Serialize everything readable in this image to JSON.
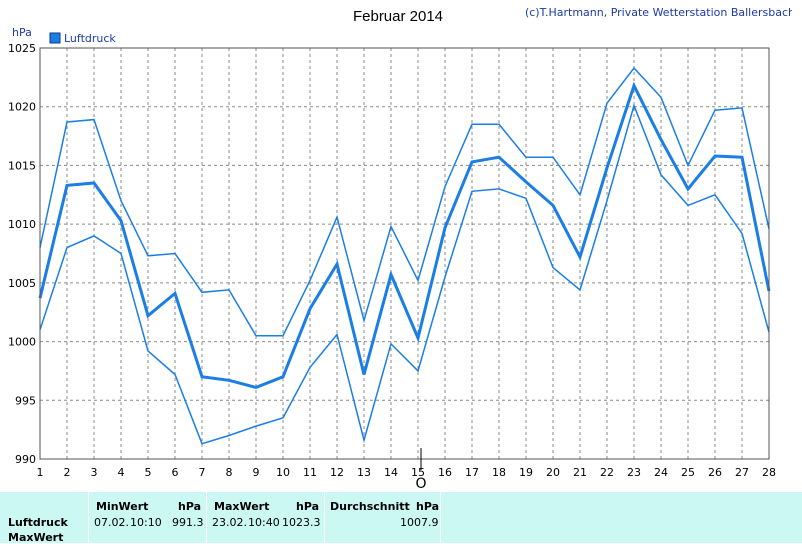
{
  "header": {
    "title": "Februar 2014",
    "copyright": "(c)T.Hartmann, Private Wetterstation Ballersbach",
    "unit_label": "hPa",
    "cursor_marker": "O"
  },
  "colors": {
    "series": "#1a7ee6",
    "legend_box": "#1a7ee6",
    "grid": "#8a8a8a",
    "footer_bg": "#ccf8f4",
    "title": "#000000",
    "copyright": "#1a3aa8"
  },
  "chart_data": {
    "type": "line",
    "title": "Februar 2014",
    "xlabel": "",
    "ylabel": "hPa",
    "xlim": [
      1,
      28
    ],
    "ylim": [
      990,
      1025
    ],
    "y_ticks": [
      990,
      995,
      1000,
      1005,
      1010,
      1015,
      1020,
      1025
    ],
    "x": [
      1,
      2,
      3,
      4,
      5,
      6,
      7,
      8,
      9,
      10,
      11,
      12,
      13,
      14,
      15,
      16,
      17,
      18,
      19,
      20,
      21,
      22,
      23,
      24,
      25,
      26,
      27,
      28
    ],
    "grid": true,
    "legend": "top-left",
    "legend_label": "Luftdruck",
    "series": [
      {
        "role": "max",
        "width": 1.5,
        "values": [
          1008.0,
          1018.7,
          1018.9,
          1012.0,
          1007.3,
          1007.5,
          1004.2,
          1004.4,
          1000.5,
          1000.5,
          1005.2,
          1010.6,
          1001.8,
          1009.8,
          1005.2,
          1013.2,
          1018.5,
          1018.5,
          1015.7,
          1015.7,
          1012.5,
          1020.3,
          1023.3,
          1020.8,
          1015.0,
          1019.7,
          1019.9,
          1009.6
        ]
      },
      {
        "name": "Luftdruck",
        "role": "avg",
        "width": 3,
        "values": [
          1003.7,
          1013.3,
          1013.5,
          1010.3,
          1002.2,
          1004.1,
          997.0,
          996.7,
          996.1,
          997.0,
          1002.8,
          1006.6,
          997.2,
          1005.7,
          1000.3,
          1009.7,
          1015.3,
          1015.7,
          1013.6,
          1011.6,
          1007.2,
          1014.8,
          1021.8,
          1017.2,
          1013.0,
          1015.8,
          1015.7,
          1004.3
        ]
      },
      {
        "role": "min",
        "width": 1.5,
        "values": [
          1001.0,
          1008.0,
          1009.0,
          1007.5,
          999.2,
          997.2,
          991.3,
          992.0,
          992.8,
          993.5,
          997.8,
          1000.6,
          991.6,
          999.8,
          997.5,
          1005.5,
          1012.8,
          1013.0,
          1012.2,
          1006.3,
          1004.4,
          1012.0,
          1020.1,
          1014.2,
          1011.6,
          1012.5,
          1009.2,
          1000.8
        ]
      }
    ]
  },
  "stats": {
    "row_label": "Luftdruck",
    "row_label_next": "MaxWert",
    "min": {
      "header": "MinWert",
      "unit": "hPa",
      "date": "07.02.",
      "time": "10:10",
      "value": "991.3"
    },
    "max": {
      "header": "MaxWert",
      "unit": "hPa",
      "date": "23.02.",
      "time": "10:40",
      "value": "1023.3"
    },
    "avg": {
      "header": "Durchschnitt",
      "unit": "hPa",
      "value": "1007.9"
    }
  }
}
